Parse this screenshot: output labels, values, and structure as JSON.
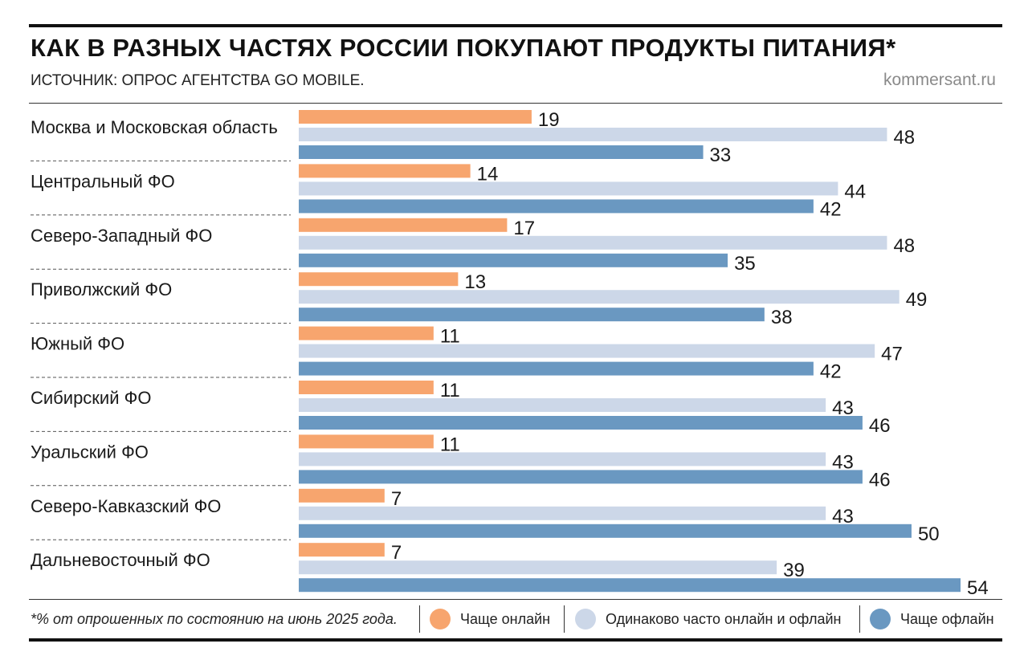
{
  "header": {
    "title": "КАК В РАЗНЫХ ЧАСТЯХ РОССИИ ПОКУПАЮТ ПРОДУКТЫ ПИТАНИЯ*",
    "subtitle": "ИСТОЧНИК: ОПРОС АГЕНТСТВА GO MOBILE.",
    "source": "kommersant.ru"
  },
  "footer": {
    "footnote": "*% от опрошенных по состоянию на июнь 2025 года."
  },
  "chart_data": {
    "type": "bar",
    "orientation": "horizontal",
    "title": "КАК В РАЗНЫХ ЧАСТЯХ РОССИИ ПОКУПАЮТ ПРОДУКТЫ ПИТАНИЯ*",
    "subtitle": "ИСТОЧНИК: ОПРОС АГЕНТСТВА GO MOBILE.",
    "categories": [
      "Москва и Московская область",
      "Центральный ФО",
      "Северо-Западный ФО",
      "Приволжский ФО",
      "Южный ФО",
      "Сибирский ФО",
      "Уральский ФО",
      "Северо-Кавказский ФО",
      "Дальневосточный ФО"
    ],
    "series": [
      {
        "name": "Чаще онлайн",
        "color": "#f7a56e",
        "values": [
          19,
          14,
          17,
          13,
          11,
          11,
          11,
          7,
          7
        ]
      },
      {
        "name": "Одинаково часто онлайн и офлайн",
        "color": "#ccd7e8",
        "values": [
          48,
          44,
          48,
          49,
          47,
          43,
          43,
          43,
          39
        ]
      },
      {
        "name": "Чаще офлайн",
        "color": "#6a98c1",
        "values": [
          33,
          42,
          35,
          38,
          42,
          46,
          46,
          50,
          54
        ]
      }
    ],
    "xlim": [
      0,
      54
    ],
    "data_labels": true,
    "grid": false,
    "legend_position": "bottom"
  }
}
